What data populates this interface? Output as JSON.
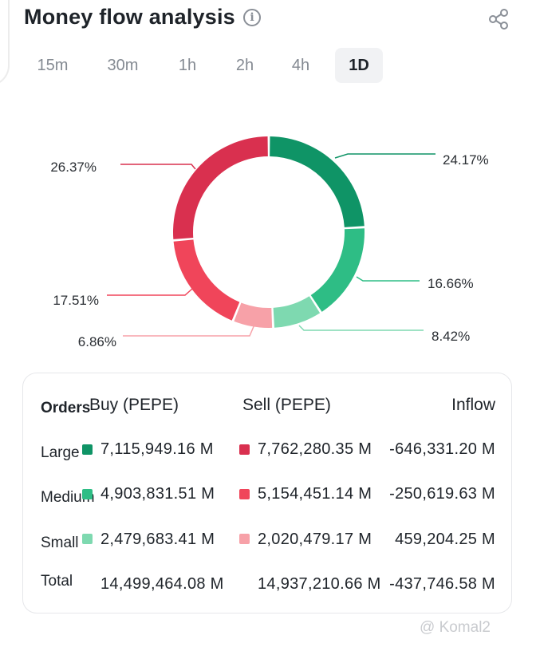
{
  "header": {
    "title": "Money flow analysis",
    "info_icon": "info-icon",
    "share_icon": "share-icon"
  },
  "tabs": [
    {
      "label": "15m",
      "active": false
    },
    {
      "label": "30m",
      "active": false
    },
    {
      "label": "1h",
      "active": false
    },
    {
      "label": "2h",
      "active": false
    },
    {
      "label": "4h",
      "active": false
    },
    {
      "label": "1D",
      "active": true
    }
  ],
  "chart_data": {
    "type": "pie",
    "donut": true,
    "slices": [
      {
        "label": "24.17%",
        "value": 24.17,
        "color": "#0f9466"
      },
      {
        "label": "16.66%",
        "value": 16.66,
        "color": "#2ebd85"
      },
      {
        "label": "8.42%",
        "value": 8.42,
        "color": "#7ed9b0"
      },
      {
        "label": "6.86%",
        "value": 6.86,
        "color": "#f7a1a8"
      },
      {
        "label": "17.51%",
        "value": 17.51,
        "color": "#f0455a"
      },
      {
        "label": "26.37%",
        "value": 26.37,
        "color": "#d9304f"
      }
    ]
  },
  "table": {
    "headers": {
      "orders": "Orders",
      "buy": "Buy (PEPE)",
      "sell": "Sell (PEPE)",
      "inflow": "Inflow"
    },
    "rows": [
      {
        "label": "Large",
        "buy": "7,115,949.16 M",
        "sell": "7,762,280.35 M",
        "inflow": "-646,331.20 M",
        "buy_color": "#0f9466",
        "sell_color": "#d9304f"
      },
      {
        "label": "Medium",
        "buy": "4,903,831.51 M",
        "sell": "5,154,451.14 M",
        "inflow": "-250,619.63 M",
        "buy_color": "#2ebd85",
        "sell_color": "#f0455a"
      },
      {
        "label": "Small",
        "buy": "2,479,683.41 M",
        "sell": "2,020,479.17 M",
        "inflow": "459,204.25 M",
        "buy_color": "#7ed9b0",
        "sell_color": "#f7a1a8"
      }
    ],
    "total": {
      "label": "Total",
      "buy": "14,499,464.08 M",
      "sell": "14,937,210.66 M",
      "inflow": "-437,746.58 M"
    }
  },
  "watermark": "@ Komal2"
}
